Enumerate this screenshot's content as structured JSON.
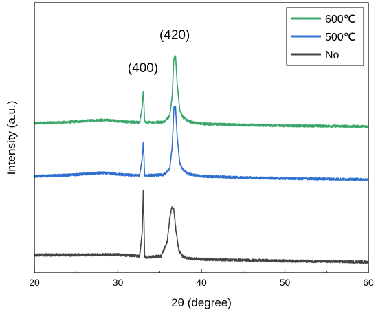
{
  "chart_data": {
    "type": "line",
    "xlabel": "2θ (degree)",
    "ylabel": "Intensity (a.u.)",
    "xlim": [
      20,
      60
    ],
    "xticks": [
      20,
      30,
      40,
      50,
      60
    ],
    "y_ticks_shown": false,
    "grid": false,
    "legend_position": "top-right",
    "annotations": [
      {
        "text": "(400)",
        "x": 33.0
      },
      {
        "text": "(420)",
        "x": 36.8
      }
    ],
    "series": [
      {
        "name": "600℃",
        "color": "#3aa66a",
        "x": [
          20,
          24,
          28,
          29,
          31,
          32.6,
          32.9,
          33.05,
          33.2,
          33.5,
          35.5,
          36.2,
          36.5,
          36.7,
          36.9,
          37.1,
          37.4,
          37.8,
          38.5,
          40,
          45,
          50,
          55,
          60
        ],
        "y": [
          0.7,
          0.9,
          1.3,
          1.25,
          0.95,
          0.85,
          3.5,
          6.8,
          0.9,
          0.85,
          0.95,
          2.0,
          5.5,
          12.5,
          13.0,
          8.0,
          3.2,
          1.8,
          1.0,
          0.6,
          0.4,
          0.25,
          0.2,
          0.1
        ]
      },
      {
        "name": "500℃",
        "color": "#2f6fd0",
        "x": [
          20,
          24,
          28,
          29,
          31,
          32.6,
          32.9,
          33.05,
          33.2,
          33.5,
          35.5,
          36.2,
          36.5,
          36.7,
          36.9,
          37.1,
          37.4,
          37.8,
          38.5,
          40,
          45,
          50,
          55,
          60
        ],
        "y": [
          0.7,
          0.9,
          1.3,
          1.2,
          0.95,
          0.85,
          3.8,
          7.0,
          0.9,
          0.85,
          0.95,
          2.0,
          6.0,
          13.0,
          13.4,
          8.0,
          3.2,
          1.8,
          1.1,
          0.7,
          0.45,
          0.3,
          0.2,
          0.1
        ]
      },
      {
        "name": "No",
        "color": "#444444",
        "x": [
          20,
          24,
          28,
          30,
          32.6,
          32.9,
          33.05,
          33.2,
          33.5,
          35.2,
          35.9,
          36.2,
          36.45,
          36.7,
          36.95,
          37.3,
          37.8,
          38.5,
          40,
          45,
          50,
          55,
          60
        ],
        "y": [
          1.3,
          1.3,
          1.35,
          1.35,
          1.1,
          5.0,
          12.6,
          1.0,
          0.9,
          1.1,
          3.5,
          7.5,
          9.5,
          9.0,
          5.5,
          2.0,
          1.0,
          0.7,
          0.55,
          0.4,
          0.25,
          0.15,
          0.05
        ]
      }
    ]
  }
}
